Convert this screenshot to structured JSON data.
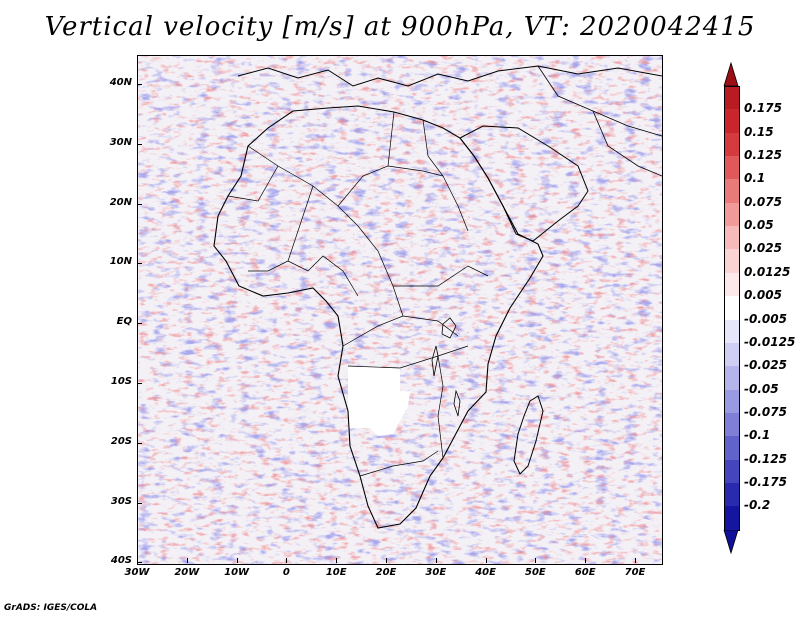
{
  "title": "Vertical velocity [m/s] at 900hPa, VT: 2020042415",
  "credit": "GrADS: IGES/COLA",
  "lat_labels": [
    "40N",
    "30N",
    "20N",
    "10N",
    "EQ",
    "10S",
    "20S",
    "30S",
    "40S"
  ],
  "lon_labels": [
    "30W",
    "20W",
    "10W",
    "0",
    "10E",
    "20E",
    "30E",
    "40E",
    "50E",
    "60E",
    "70E"
  ],
  "colorbar": {
    "labels": [
      "0.175",
      "0.15",
      "0.125",
      "0.1",
      "0.075",
      "0.05",
      "0.025",
      "0.0125",
      "0.005",
      "-0.005",
      "-0.0125",
      "-0.025",
      "-0.05",
      "-0.075",
      "-0.1",
      "-0.125",
      "-0.175",
      "-0.2"
    ],
    "colors": [
      "#b81c22",
      "#c8262c",
      "#d43a3e",
      "#e0585a",
      "#e97a7a",
      "#f09a9a",
      "#f6baba",
      "#fad4d4",
      "#fde9e9",
      "#ffffff",
      "#e6e6fa",
      "#cfcff3",
      "#b5b5ec",
      "#9a9ae3",
      "#7f7fd8",
      "#6262cc",
      "#4545be",
      "#2a2aae",
      "#1515a0"
    ],
    "top_arrow_color": "#9a0e14",
    "bottom_arrow_color": "#10109a"
  },
  "field_colors": {
    "positive": "#e05050",
    "negative": "#5c5cd6",
    "land_outline": "#000000"
  }
}
